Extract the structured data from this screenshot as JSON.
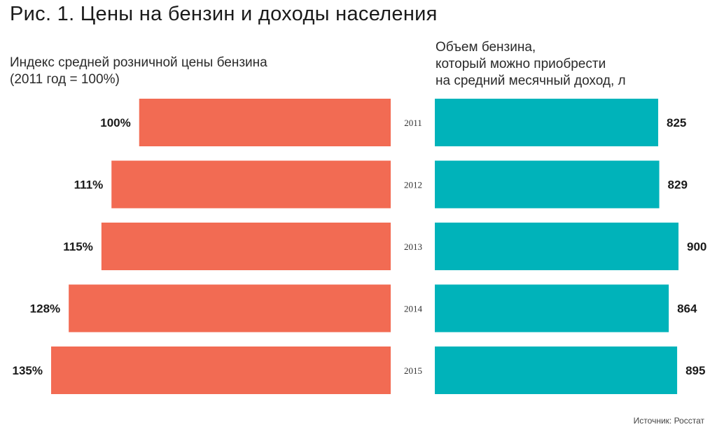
{
  "title": "Рис. 1. Цены на бензин и доходы населения",
  "left_panel_label_lines": [
    "Индекс средней розничной цены бензина",
    "(2011 год = 100%)"
  ],
  "right_panel_label_lines": [
    "Объем бензина,",
    "который можно приобрести",
    "на средний месячный доход, л"
  ],
  "source": "Источник: Росстат",
  "colors": {
    "left_bars": "#f26b53",
    "right_bars": "#00b3ba"
  },
  "chart_data": [
    {
      "type": "bar",
      "orientation": "horizontal",
      "direction": "right-to-left",
      "categories": [
        "2011",
        "2012",
        "2013",
        "2014",
        "2015"
      ],
      "values": [
        100,
        111,
        115,
        128,
        135
      ],
      "value_labels": [
        "100%",
        "111%",
        "115%",
        "128%",
        "135%"
      ],
      "unit": "%"
    },
    {
      "type": "bar",
      "orientation": "horizontal",
      "direction": "left-to-right",
      "categories": [
        "2011",
        "2012",
        "2013",
        "2014",
        "2015"
      ],
      "values": [
        825,
        829,
        900,
        864,
        895
      ],
      "value_labels": [
        "825",
        "829",
        "900",
        "864",
        "895"
      ],
      "unit": "л"
    }
  ]
}
